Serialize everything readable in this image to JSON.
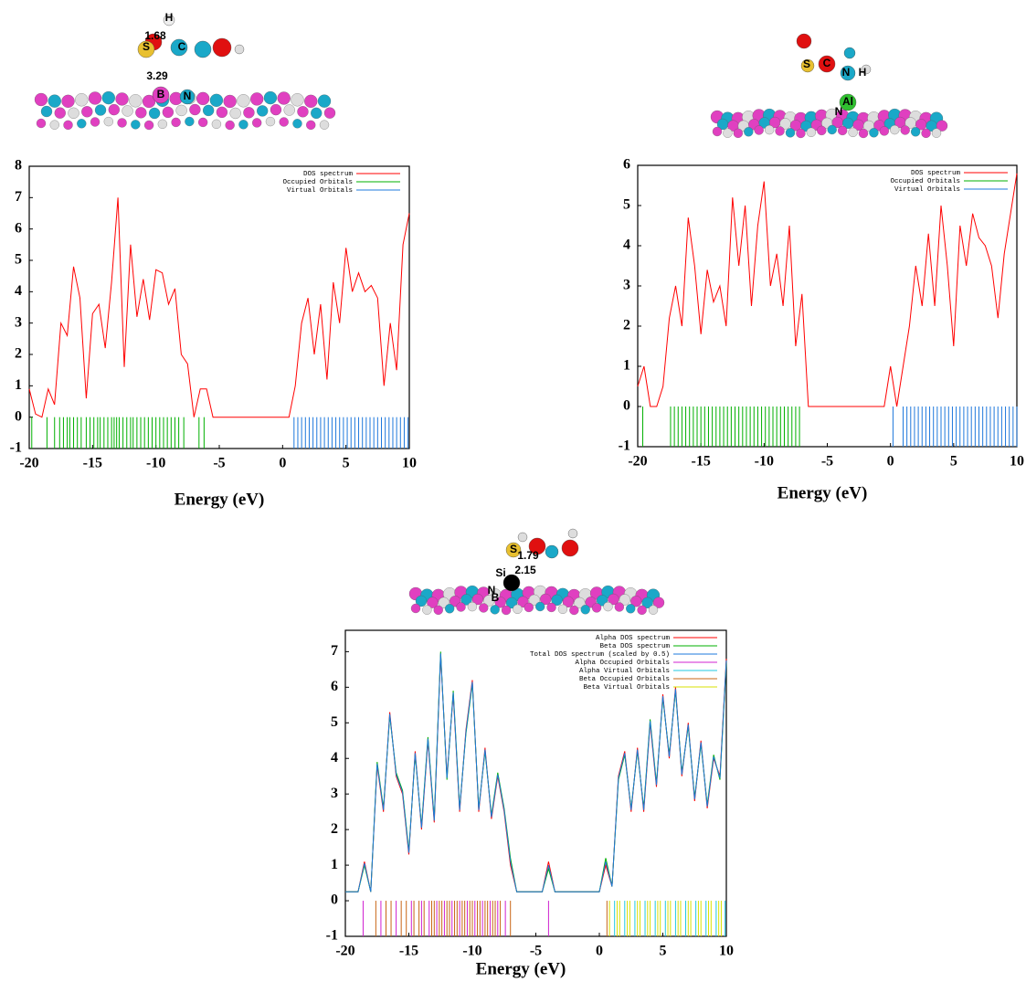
{
  "chart_data": [
    {
      "type": "line",
      "x_label": "Energy (eV)",
      "legend": "upper right",
      "annotations": [
        "H",
        "1.68",
        "S",
        "C",
        "3.29",
        "B",
        "N"
      ],
      "xlim": [
        -20,
        10
      ],
      "ylim": [
        -1,
        8
      ],
      "xticks": [
        -20,
        -15,
        -10,
        -5,
        0,
        5,
        10
      ],
      "yticks": [
        -1,
        0,
        1,
        2,
        3,
        4,
        5,
        6,
        7,
        8
      ],
      "x": [
        -20,
        -19.5,
        -19,
        -18.5,
        -18,
        -17.5,
        -17,
        -16.5,
        -16,
        -15.5,
        -15,
        -14.5,
        -14,
        -13.5,
        -13,
        -12.5,
        -12,
        -11.5,
        -11,
        -10.5,
        -10,
        -9.5,
        -9,
        -8.5,
        -8,
        -7.5,
        -7,
        -6.5,
        -6,
        -5.5,
        -5,
        -4.5,
        -4,
        -3.5,
        -3,
        -2.5,
        -2,
        -1.5,
        -1,
        -0.5,
        0,
        0.5,
        1,
        1.5,
        2,
        2.5,
        3,
        3.5,
        4,
        4.5,
        5,
        5.5,
        6,
        6.5,
        7,
        7.5,
        8,
        8.5,
        9,
        9.5,
        10
      ],
      "series": [
        {
          "name": "DOS spectrum",
          "color": "#ff0000",
          "values": [
            0.9,
            0.1,
            0,
            0.9,
            0.4,
            3.0,
            2.6,
            4.8,
            3.8,
            0.6,
            3.3,
            3.6,
            2.2,
            4.3,
            7.0,
            1.6,
            5.5,
            3.2,
            4.4,
            3.1,
            4.7,
            4.6,
            3.6,
            4.1,
            2.0,
            1.7,
            0,
            0.9,
            0.9,
            0,
            0,
            0,
            0,
            0,
            0,
            0,
            0,
            0,
            0,
            0,
            0,
            0,
            1.0,
            3.0,
            3.8,
            2.0,
            3.6,
            1.2,
            4.3,
            3.0,
            5.4,
            4.0,
            4.6,
            4.0,
            4.2,
            3.8,
            1.0,
            3.0,
            1.5,
            5.5,
            6.5
          ]
        }
      ],
      "orbitals": [
        {
          "name": "Occupied Orbitals",
          "color": "#00b000",
          "energies": [
            -19.8,
            -18.6,
            -18.0,
            -17.6,
            -17.3,
            -17.0,
            -16.8,
            -16.5,
            -16.2,
            -15.9,
            -15.5,
            -15.2,
            -14.9,
            -14.6,
            -14.4,
            -14.1,
            -13.8,
            -13.5,
            -13.3,
            -13.1,
            -12.9,
            -12.6,
            -12.3,
            -12.0,
            -11.8,
            -11.5,
            -11.2,
            -10.9,
            -10.6,
            -10.3,
            -10.0,
            -9.7,
            -9.4,
            -9.1,
            -8.8,
            -8.5,
            -8.2,
            -7.8,
            -6.6,
            -6.2
          ]
        },
        {
          "name": "Virtual Orbitals",
          "color": "#1e78dc",
          "energies": [
            0.9,
            1.2,
            1.5,
            1.8,
            2.1,
            2.4,
            2.7,
            3.0,
            3.3,
            3.6,
            3.9,
            4.2,
            4.5,
            4.8,
            5.1,
            5.4,
            5.7,
            6.0,
            6.3,
            6.6,
            6.9,
            7.2,
            7.5,
            7.8,
            8.1,
            8.4,
            8.7,
            9.0,
            9.3,
            9.6,
            9.9
          ]
        }
      ]
    },
    {
      "type": "line",
      "x_label": "Energy (eV)",
      "legend": "upper right",
      "annotations": [
        "S",
        "C",
        "N",
        "H",
        "Al",
        "N"
      ],
      "xlim": [
        -20,
        10
      ],
      "ylim": [
        -1,
        6
      ],
      "xticks": [
        -20,
        -15,
        -10,
        -5,
        0,
        5,
        10
      ],
      "yticks": [
        -1,
        0,
        1,
        2,
        3,
        4,
        5,
        6
      ],
      "x": [
        -20,
        -19.5,
        -19,
        -18.5,
        -18,
        -17.5,
        -17,
        -16.5,
        -16,
        -15.5,
        -15,
        -14.5,
        -14,
        -13.5,
        -13,
        -12.5,
        -12,
        -11.5,
        -11,
        -10.5,
        -10,
        -9.5,
        -9,
        -8.5,
        -8,
        -7.5,
        -7,
        -6.5,
        -6,
        -5.5,
        -5,
        -4.5,
        -4,
        -3.5,
        -3,
        -2.5,
        -2,
        -1.5,
        -1,
        -0.5,
        0,
        0.5,
        1,
        1.5,
        2,
        2.5,
        3,
        3.5,
        4,
        4.5,
        5,
        5.5,
        6,
        6.5,
        7,
        7.5,
        8,
        8.5,
        9,
        9.5,
        10
      ],
      "series": [
        {
          "name": "DOS spectrum",
          "color": "#ff0000",
          "values": [
            0.5,
            1.0,
            0,
            0,
            0.5,
            2.2,
            3.0,
            2.0,
            4.7,
            3.5,
            1.8,
            3.4,
            2.6,
            3.0,
            2.0,
            5.2,
            3.5,
            5.0,
            2.5,
            4.5,
            5.6,
            3.0,
            3.8,
            2.5,
            4.5,
            1.5,
            2.8,
            0,
            0,
            0,
            0,
            0,
            0,
            0,
            0,
            0,
            0,
            0,
            0,
            0,
            1.0,
            0,
            1.0,
            2.0,
            3.5,
            2.5,
            4.3,
            2.5,
            5.0,
            3.5,
            1.5,
            4.5,
            3.5,
            4.8,
            4.2,
            4.0,
            3.5,
            2.2,
            3.8,
            4.8,
            5.8
          ]
        }
      ],
      "orbitals": [
        {
          "name": "Occupied Orbitals",
          "color": "#00b000",
          "energies": [
            -19.6,
            -17.4,
            -17.1,
            -16.8,
            -16.5,
            -16.2,
            -15.9,
            -15.6,
            -15.3,
            -15.0,
            -14.7,
            -14.4,
            -14.1,
            -13.8,
            -13.5,
            -13.2,
            -12.9,
            -12.6,
            -12.3,
            -12.0,
            -11.7,
            -11.4,
            -11.1,
            -10.8,
            -10.5,
            -10.2,
            -9.9,
            -9.6,
            -9.3,
            -9.0,
            -8.7,
            -8.4,
            -8.1,
            -7.8,
            -7.5,
            -7.2
          ]
        },
        {
          "name": "Virtual Orbitals",
          "color": "#1e78dc",
          "energies": [
            0.2,
            1.0,
            1.3,
            1.6,
            1.9,
            2.2,
            2.5,
            2.8,
            3.1,
            3.4,
            3.7,
            4.0,
            4.3,
            4.6,
            4.9,
            5.2,
            5.5,
            5.8,
            6.1,
            6.4,
            6.7,
            7.0,
            7.3,
            7.6,
            7.9,
            8.2,
            8.5,
            8.8,
            9.1,
            9.4,
            9.7,
            10.0
          ]
        }
      ]
    },
    {
      "type": "line",
      "x_label": "Energy (eV)",
      "legend": "upper right",
      "annotations": [
        "S",
        "1.79",
        "2.15",
        "Si",
        "N",
        "B"
      ],
      "xlim": [
        -20,
        10
      ],
      "ylim": [
        -1,
        7.6
      ],
      "xticks": [
        -20,
        -15,
        -10,
        -5,
        0,
        5,
        10
      ],
      "yticks": [
        -1,
        0,
        1,
        2,
        3,
        4,
        5,
        6,
        7
      ],
      "x": [
        -20,
        -19.5,
        -19,
        -18.5,
        -18,
        -17.5,
        -17,
        -16.5,
        -16,
        -15.5,
        -15,
        -14.5,
        -14,
        -13.5,
        -13,
        -12.5,
        -12,
        -11.5,
        -11,
        -10.5,
        -10,
        -9.5,
        -9,
        -8.5,
        -8,
        -7.5,
        -7,
        -6.5,
        -6,
        -5.5,
        -5,
        -4.5,
        -4,
        -3.5,
        -3,
        -2.5,
        -2,
        -1.5,
        -1,
        -0.5,
        0,
        0.5,
        1,
        1.5,
        2,
        2.5,
        3,
        3.5,
        4,
        4.5,
        5,
        5.5,
        6,
        6.5,
        7,
        7.5,
        8,
        8.5,
        9,
        9.5,
        10
      ],
      "series": [
        {
          "name": "Alpha DOS spectrum",
          "color": "#ff0000",
          "values": [
            0.25,
            0.25,
            0.25,
            1.1,
            0.25,
            3.8,
            2.5,
            5.3,
            3.5,
            3.0,
            1.3,
            4.2,
            2.0,
            4.5,
            2.2,
            6.9,
            3.5,
            5.8,
            2.5,
            4.8,
            6.2,
            2.5,
            4.3,
            2.3,
            3.5,
            2.5,
            1.0,
            0.25,
            0.25,
            0.25,
            0.25,
            0.25,
            1.1,
            0.25,
            0.25,
            0.25,
            0.25,
            0.25,
            0.25,
            0.25,
            0.25,
            1.0,
            0.4,
            3.5,
            4.2,
            2.5,
            4.3,
            2.5,
            5.0,
            3.2,
            5.8,
            4.0,
            6.0,
            3.5,
            5.0,
            2.8,
            4.5,
            2.6,
            4.0,
            3.5,
            6.8
          ]
        },
        {
          "name": "Beta DOS spectrum",
          "color": "#00b000",
          "values": [
            0.25,
            0.25,
            0.25,
            1.0,
            0.25,
            3.9,
            2.6,
            5.2,
            3.6,
            3.1,
            1.4,
            4.1,
            2.1,
            4.6,
            2.3,
            7.0,
            3.4,
            5.9,
            2.6,
            4.7,
            6.1,
            2.6,
            4.2,
            2.4,
            3.6,
            2.6,
            1.2,
            0.25,
            0.25,
            0.25,
            0.25,
            0.25,
            0.9,
            0.25,
            0.25,
            0.25,
            0.25,
            0.25,
            0.25,
            0.25,
            0.25,
            1.2,
            0.4,
            3.4,
            4.1,
            2.6,
            4.2,
            2.6,
            5.1,
            3.3,
            5.7,
            4.1,
            5.9,
            3.6,
            4.9,
            2.9,
            4.4,
            2.7,
            4.1,
            3.4,
            6.7
          ]
        },
        {
          "name": "Total DOS spectrum (scaled by 0.5)",
          "color": "#1e78dc",
          "values": [
            0.25,
            0.25,
            0.25,
            1.05,
            0.25,
            3.85,
            2.55,
            5.25,
            3.55,
            3.05,
            1.35,
            4.15,
            2.05,
            4.55,
            2.25,
            6.95,
            3.45,
            5.85,
            2.55,
            4.75,
            6.15,
            2.55,
            4.25,
            2.35,
            3.55,
            2.55,
            1.1,
            0.25,
            0.25,
            0.25,
            0.25,
            0.25,
            1.0,
            0.25,
            0.25,
            0.25,
            0.25,
            0.25,
            0.25,
            0.25,
            0.25,
            1.1,
            0.4,
            3.45,
            4.15,
            2.55,
            4.25,
            2.55,
            5.05,
            3.25,
            5.75,
            4.05,
            5.95,
            3.55,
            4.95,
            2.85,
            4.45,
            2.65,
            4.05,
            3.45,
            6.75
          ]
        }
      ],
      "orbitals": [
        {
          "name": "Alpha Occupied Orbitals",
          "color": "#d020d0",
          "energies": [
            -18.6,
            -17.2,
            -16.0,
            -14.8,
            -14.0,
            -13.4,
            -12.8,
            -12.2,
            -11.6,
            -11.0,
            -10.4,
            -9.8,
            -9.2,
            -8.6,
            -8.0,
            -7.4,
            -4.0
          ]
        },
        {
          "name": "Alpha Virtual Orbitals",
          "color": "#20c8e0",
          "energies": [
            1.2,
            2.0,
            2.8,
            3.6,
            4.4,
            5.2,
            6.0,
            6.8,
            7.6,
            8.4,
            9.2,
            9.9
          ]
        },
        {
          "name": "Beta Occupied Orbitals",
          "color": "#c86414",
          "energies": [
            -17.6,
            -16.8,
            -16.4,
            -15.6,
            -15.2,
            -14.6,
            -14.2,
            -13.8,
            -13.2,
            -13.0,
            -12.6,
            -12.4,
            -12.0,
            -11.8,
            -11.4,
            -11.2,
            -10.8,
            -10.6,
            -10.2,
            -10.0,
            -9.6,
            -9.4,
            -9.0,
            -8.8,
            -8.4,
            -8.2,
            -7.8,
            -7.0,
            0.6
          ]
        },
        {
          "name": "Beta Virtual Orbitals",
          "color": "#d8e000",
          "energies": [
            0.8,
            1.4,
            1.6,
            2.2,
            2.4,
            3.0,
            3.2,
            3.8,
            4.0,
            4.6,
            4.8,
            5.4,
            5.6,
            6.2,
            6.4,
            7.0,
            7.2,
            7.8,
            8.0,
            8.6,
            8.8,
            9.4,
            9.6
          ]
        }
      ]
    }
  ]
}
